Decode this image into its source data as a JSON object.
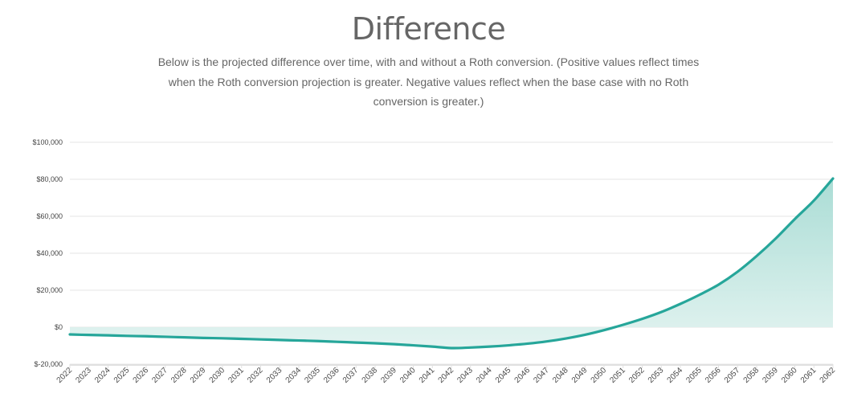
{
  "header": {
    "title": "Difference",
    "subtitle": "Below is the projected difference over time, with and without a Roth conversion. (Positive values reflect times when the Roth conversion projection is greater. Negative values reflect when the base case with no Roth conversion is greater.)"
  },
  "colors": {
    "line": "#26a69a",
    "fill_top": "#a6dbd3",
    "fill_bottom": "#e2f3f0",
    "grid": "#e6e6e6",
    "text": "#666666"
  },
  "chart_data": {
    "type": "area",
    "title": "Difference",
    "xlabel": "",
    "ylabel": "",
    "ylim": [
      -20000,
      100000
    ],
    "yticks": [
      {
        "value": 100000,
        "label": "$100,000"
      },
      {
        "value": 80000,
        "label": "$80,000"
      },
      {
        "value": 60000,
        "label": "$60,000"
      },
      {
        "value": 40000,
        "label": "$40,000"
      },
      {
        "value": 20000,
        "label": "$20,000"
      },
      {
        "value": 0,
        "label": "$0"
      },
      {
        "value": -20000,
        "label": "$-20,000"
      }
    ],
    "grid": true,
    "legend": "none",
    "categories": [
      "2022",
      "2023",
      "2024",
      "2025",
      "2026",
      "2027",
      "2028",
      "2029",
      "2030",
      "2031",
      "2032",
      "2033",
      "2034",
      "2035",
      "2036",
      "2037",
      "2038",
      "2039",
      "2040",
      "2041",
      "2042",
      "2043",
      "2044",
      "2045",
      "2046",
      "2047",
      "2048",
      "2049",
      "2050",
      "2051",
      "2052",
      "2053",
      "2054",
      "2055",
      "2056",
      "2057",
      "2058",
      "2059",
      "2060",
      "2061",
      "2062"
    ],
    "series": [
      {
        "name": "Difference",
        "values": [
          -3900,
          -4200,
          -4400,
          -4700,
          -4900,
          -5200,
          -5500,
          -5800,
          -6000,
          -6300,
          -6600,
          -6900,
          -7200,
          -7500,
          -7900,
          -8300,
          -8700,
          -9200,
          -9800,
          -10500,
          -11300,
          -11000,
          -10500,
          -9800,
          -8900,
          -7700,
          -6100,
          -4100,
          -1600,
          1300,
          4500,
          8200,
          12600,
          17500,
          23000,
          30000,
          38500,
          48000,
          58500,
          68500,
          80400
        ]
      }
    ]
  }
}
